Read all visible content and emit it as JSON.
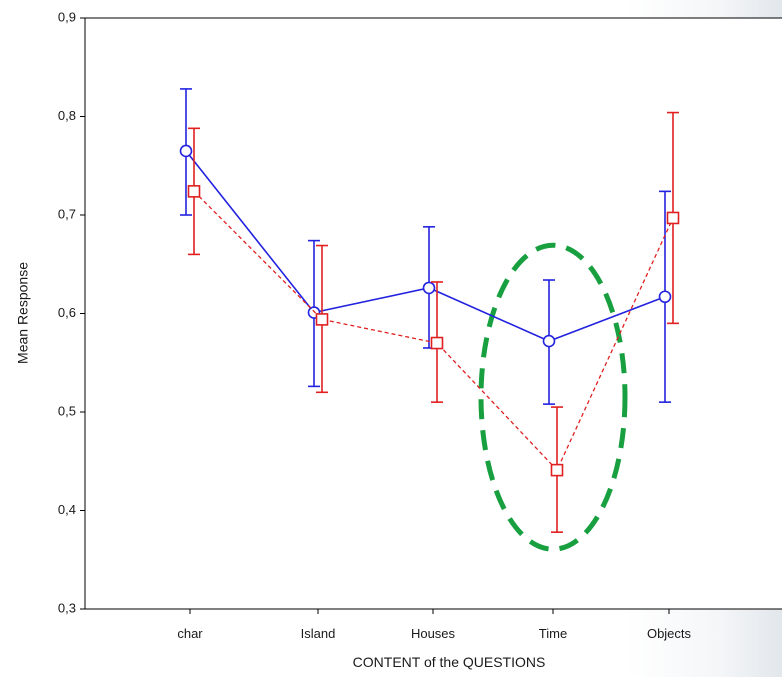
{
  "chart_data": {
    "type": "line",
    "title": "",
    "xlabel": "CONTENT of the QUESTIONS",
    "ylabel": "Mean Response",
    "categories": [
      "char",
      "Island",
      "Houses",
      "Time",
      "Objects"
    ],
    "ylim": [
      0.3,
      0.9
    ],
    "yticks": [
      {
        "value": 0.3,
        "label": "0,3"
      },
      {
        "value": 0.4,
        "label": "0,4"
      },
      {
        "value": 0.5,
        "label": "0,5"
      },
      {
        "value": 0.6,
        "label": "0,6"
      },
      {
        "value": 0.7,
        "label": "0,7"
      },
      {
        "value": 0.8,
        "label": "0,8"
      },
      {
        "value": 0.9,
        "label": "0,9"
      }
    ],
    "grid": false,
    "legend": "none",
    "series": [
      {
        "color": "#2323e0",
        "marker": "circle",
        "line_style": "solid",
        "values": [
          0.765,
          0.601,
          0.626,
          0.572,
          0.617
        ],
        "lower": [
          0.7,
          0.526,
          0.565,
          0.508,
          0.51
        ],
        "upper": [
          0.828,
          0.674,
          0.688,
          0.634,
          0.724
        ]
      },
      {
        "color": "#e02020",
        "marker": "square",
        "line_style": "dashed",
        "values": [
          0.724,
          0.594,
          0.57,
          0.441,
          0.697
        ],
        "lower": [
          0.66,
          0.52,
          0.51,
          0.378,
          0.59
        ],
        "upper": [
          0.788,
          0.669,
          0.632,
          0.505,
          0.804
        ]
      }
    ],
    "annotations": [
      {
        "type": "ellipse",
        "category": "Time",
        "center_y": 0.515,
        "color": "#18a040",
        "line_style": "dashed"
      }
    ]
  }
}
